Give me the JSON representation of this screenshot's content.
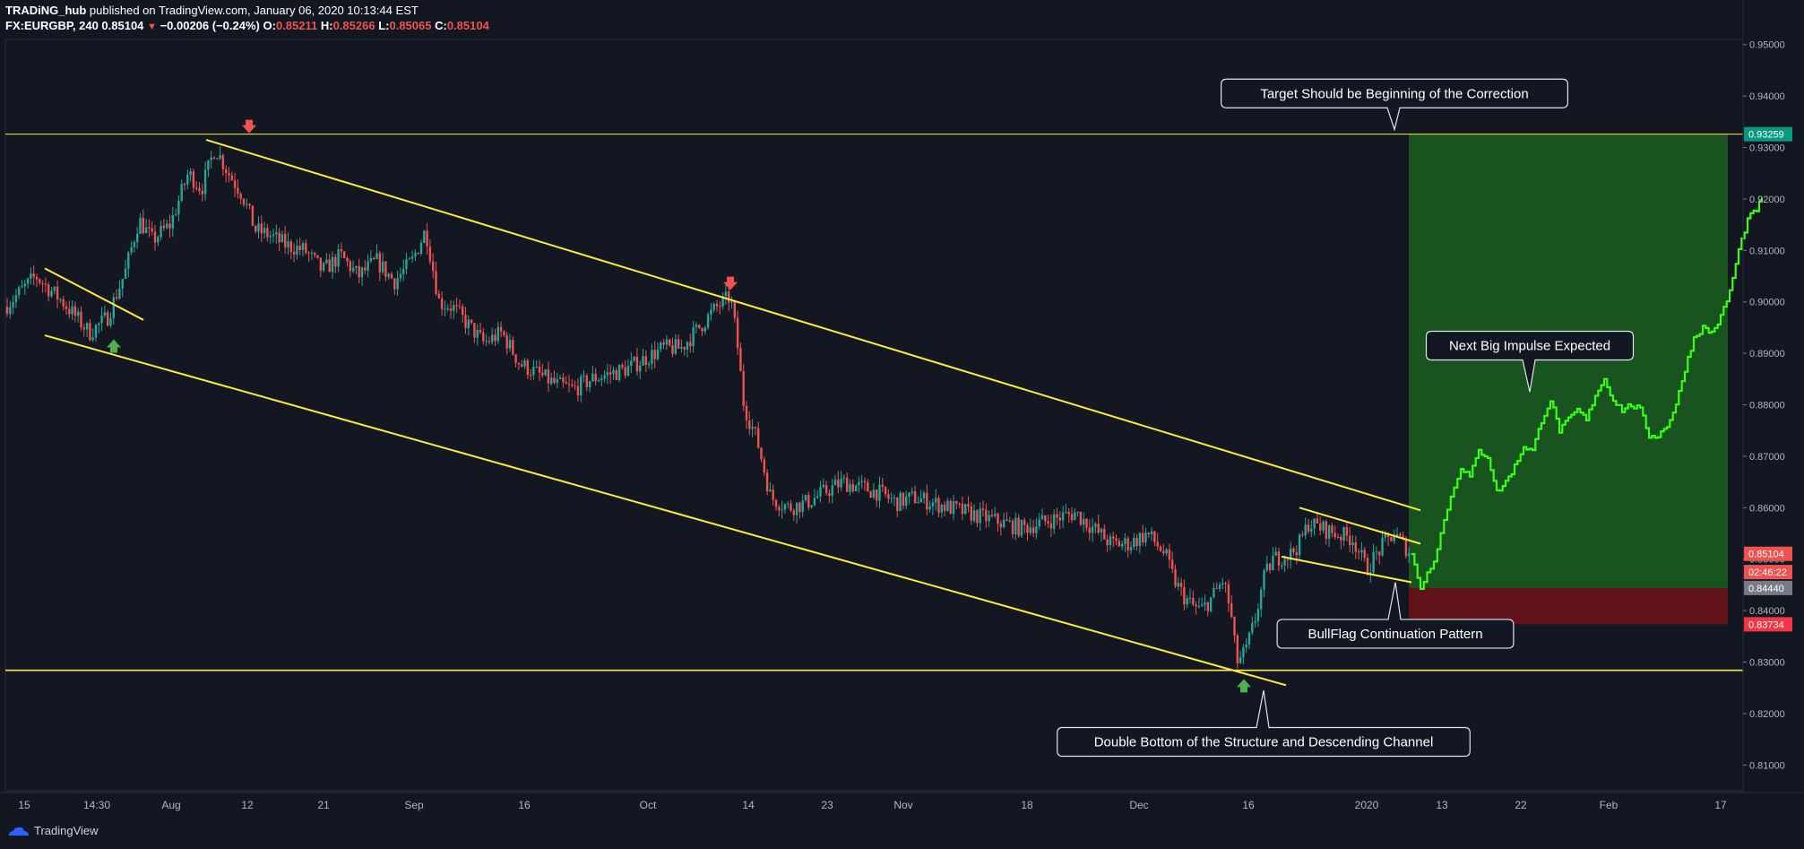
{
  "header": {
    "line1_author": "TRADiNG_hub",
    "line1_rest": "published on TradingView.com, January 06, 2020 10:13:44 EST",
    "symbol": "FX:EURGBP, 240",
    "last": "0.85104",
    "change": "−0.00206 (−0.24%)",
    "o_label": "O:",
    "o_value": "0.85211",
    "h_label": "H:",
    "h_value": "0.85266",
    "l_label": "L:",
    "l_value": "0.85065",
    "c_label": "C:",
    "c_value": "0.85104"
  },
  "footer": {
    "brand": "TradingView"
  },
  "chart_data": {
    "type": "candlestick",
    "symbol": "EURGBP",
    "timeframe": "240",
    "ylim": [
      0.805,
      0.951
    ],
    "y_ticks": [
      "0.95000",
      "0.94000",
      "0.93000",
      "0.92000",
      "0.91000",
      "0.90000",
      "0.89000",
      "0.88000",
      "0.87000",
      "0.86000",
      "0.85000",
      "0.84000",
      "0.83000",
      "0.82000",
      "0.81000"
    ],
    "x_ticks": [
      "15",
      "14:30",
      "Aug",
      "12",
      "21",
      "Sep",
      "16",
      "Oct",
      "14",
      "23",
      "Nov",
      "18",
      "Dec",
      "16",
      "2020",
      "13",
      "22",
      "Feb",
      "17"
    ],
    "price_labels": [
      {
        "text": "0.93259",
        "value": 0.93259,
        "color": "#089981"
      },
      {
        "text": "0.85104",
        "value": 0.85104,
        "color": "#ef5350"
      },
      {
        "text": "02:46:22",
        "value": 0.8475,
        "color": "#ef5350"
      },
      {
        "text": "0.84440",
        "value": 0.8444,
        "color": "#787b86"
      },
      {
        "text": "0.83734",
        "value": 0.83734,
        "color": "#f23645"
      }
    ],
    "horizontal_levels": [
      0.93259,
      0.8284
    ],
    "target_zone": {
      "top": 0.93259,
      "entry": 0.8444,
      "stop": 0.83734
    },
    "price_path": [
      [
        0,
        0.898
      ],
      [
        40,
        0.905
      ],
      [
        70,
        0.9
      ],
      [
        100,
        0.894
      ],
      [
        120,
        0.897
      ],
      [
        140,
        0.906
      ],
      [
        155,
        0.916
      ],
      [
        170,
        0.912
      ],
      [
        190,
        0.915
      ],
      [
        210,
        0.925
      ],
      [
        225,
        0.922
      ],
      [
        240,
        0.93
      ],
      [
        255,
        0.925
      ],
      [
        270,
        0.921
      ],
      [
        285,
        0.914
      ],
      [
        300,
        0.913
      ],
      [
        320,
        0.911
      ],
      [
        340,
        0.91
      ],
      [
        360,
        0.906
      ],
      [
        380,
        0.909
      ],
      [
        400,
        0.905
      ],
      [
        420,
        0.908
      ],
      [
        440,
        0.904
      ],
      [
        460,
        0.908
      ],
      [
        475,
        0.914
      ],
      [
        490,
        0.9
      ],
      [
        505,
        0.899
      ],
      [
        520,
        0.896
      ],
      [
        540,
        0.892
      ],
      [
        560,
        0.894
      ],
      [
        580,
        0.888
      ],
      [
        600,
        0.886
      ],
      [
        620,
        0.884
      ],
      [
        640,
        0.883
      ],
      [
        660,
        0.885
      ],
      [
        680,
        0.886
      ],
      [
        700,
        0.887
      ],
      [
        720,
        0.889
      ],
      [
        740,
        0.891
      ],
      [
        760,
        0.891
      ],
      [
        780,
        0.895
      ],
      [
        800,
        0.899
      ],
      [
        815,
        0.901
      ],
      [
        822,
        0.893
      ],
      [
        830,
        0.88
      ],
      [
        845,
        0.873
      ],
      [
        860,
        0.862
      ],
      [
        880,
        0.86
      ],
      [
        900,
        0.861
      ],
      [
        920,
        0.863
      ],
      [
        940,
        0.865
      ],
      [
        960,
        0.864
      ],
      [
        980,
        0.863
      ],
      [
        1000,
        0.861
      ],
      [
        1020,
        0.862
      ],
      [
        1040,
        0.861
      ],
      [
        1060,
        0.86
      ],
      [
        1080,
        0.859
      ],
      [
        1100,
        0.858
      ],
      [
        1120,
        0.857
      ],
      [
        1140,
        0.856
      ],
      [
        1160,
        0.857
      ],
      [
        1180,
        0.858
      ],
      [
        1200,
        0.859
      ],
      [
        1220,
        0.856
      ],
      [
        1240,
        0.853
      ],
      [
        1260,
        0.853
      ],
      [
        1280,
        0.855
      ],
      [
        1300,
        0.851
      ],
      [
        1310,
        0.846
      ],
      [
        1320,
        0.843
      ],
      [
        1330,
        0.841
      ],
      [
        1340,
        0.84
      ],
      [
        1350,
        0.842
      ],
      [
        1358,
        0.844
      ],
      [
        1365,
        0.846
      ],
      [
        1373,
        0.84
      ],
      [
        1380,
        0.83
      ],
      [
        1390,
        0.832
      ],
      [
        1400,
        0.838
      ],
      [
        1410,
        0.846
      ],
      [
        1420,
        0.85
      ],
      [
        1440,
        0.851
      ],
      [
        1450,
        0.853
      ],
      [
        1460,
        0.857
      ],
      [
        1475,
        0.856
      ],
      [
        1490,
        0.855
      ],
      [
        1510,
        0.854
      ],
      [
        1525,
        0.848
      ],
      [
        1540,
        0.852
      ],
      [
        1555,
        0.855
      ],
      [
        1565,
        0.853
      ],
      [
        1575,
        0.851
      ]
    ],
    "projection_path": [
      [
        1575,
        0.851
      ],
      [
        1585,
        0.8445
      ],
      [
        1600,
        0.85
      ],
      [
        1615,
        0.86
      ],
      [
        1630,
        0.868
      ],
      [
        1640,
        0.866
      ],
      [
        1650,
        0.871
      ],
      [
        1660,
        0.87
      ],
      [
        1670,
        0.863
      ],
      [
        1680,
        0.865
      ],
      [
        1690,
        0.868
      ],
      [
        1700,
        0.872
      ],
      [
        1710,
        0.871
      ],
      [
        1720,
        0.877
      ],
      [
        1730,
        0.881
      ],
      [
        1740,
        0.875
      ],
      [
        1750,
        0.877
      ],
      [
        1760,
        0.879
      ],
      [
        1770,
        0.877
      ],
      [
        1780,
        0.882
      ],
      [
        1790,
        0.885
      ],
      [
        1800,
        0.881
      ],
      [
        1810,
        0.879
      ],
      [
        1820,
        0.88
      ],
      [
        1830,
        0.879
      ],
      [
        1840,
        0.874
      ],
      [
        1850,
        0.874
      ],
      [
        1860,
        0.876
      ],
      [
        1870,
        0.88
      ],
      [
        1880,
        0.887
      ],
      [
        1890,
        0.893
      ],
      [
        1900,
        0.895
      ],
      [
        1910,
        0.894
      ],
      [
        1920,
        0.897
      ],
      [
        1930,
        0.902
      ],
      [
        1940,
        0.91
      ],
      [
        1950,
        0.916
      ],
      [
        1960,
        0.918
      ],
      [
        1966,
        0.92
      ]
    ],
    "trendlines": [
      {
        "name": "channel-upper",
        "from": [
          230,
          0.9315
        ],
        "to": [
          1585,
          0.8595
        ]
      },
      {
        "name": "channel-lower",
        "from": [
          50,
          0.8935
        ],
        "to": [
          1435,
          0.8255
        ]
      },
      {
        "name": "small-flag-upper",
        "from": [
          50,
          0.9065
        ],
        "to": [
          160,
          0.8965
        ]
      },
      {
        "name": "bullflag-upper",
        "from": [
          1450,
          0.86
        ],
        "to": [
          1585,
          0.853
        ]
      },
      {
        "name": "bullflag-lower",
        "from": [
          1430,
          0.8505
        ],
        "to": [
          1575,
          0.8455
        ]
      }
    ],
    "markers": [
      {
        "type": "down-arrow",
        "color": "#ef5350",
        "x": 278,
        "value": 0.934
      },
      {
        "type": "down-arrow",
        "color": "#ef5350",
        "x": 815,
        "value": 0.9035
      },
      {
        "type": "up-arrow",
        "color": "#4caf50",
        "x": 127,
        "value": 0.8915
      },
      {
        "type": "up-arrow",
        "color": "#4caf50",
        "x": 1388,
        "value": 0.8255
      }
    ],
    "annotations": [
      {
        "name": "target-callout",
        "text": "Target Should be Beginning of the Correction",
        "x": 1556,
        "value": 0.9405,
        "pointer_value": 0.9335
      },
      {
        "name": "impulse-callout",
        "text": "Next Big Impulse Expected",
        "x": 1707,
        "value": 0.8915,
        "pointer_value": 0.8825
      },
      {
        "name": "bullflag-callout",
        "text": "BullFlag Continuation Pattern",
        "x": 1557,
        "value": 0.8355,
        "pointer_value": 0.8455
      },
      {
        "name": "double-bottom-callout",
        "text": "Double Bottom of the Structure and Descending Channel",
        "x": 1410,
        "value": 0.8145,
        "pointer_value": 0.8245
      }
    ]
  }
}
